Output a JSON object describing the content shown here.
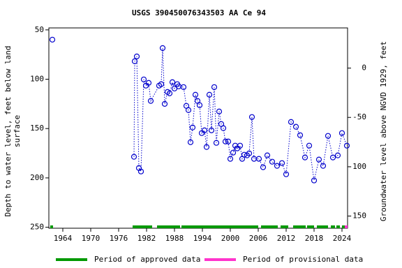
{
  "chart_data": {
    "type": "line",
    "title": "USGS 390450076343503 AA Ce  94",
    "ylabel": [
      "Depth to water level, feet below land",
      "surface"
    ],
    "y2label": "Groundwater level above NGVD 1929, feet",
    "xlim": [
      1961,
      2025.2
    ],
    "xticks": [
      1964,
      1970,
      1976,
      1982,
      1988,
      1994,
      2000,
      2006,
      2012,
      2018,
      2024
    ],
    "ylim": [
      251,
      48
    ],
    "yticks": [
      50,
      100,
      150,
      200,
      250
    ],
    "y2lim": [
      -162.3,
      40.7
    ],
    "y2ticks": [
      0,
      -50,
      -100,
      -150
    ],
    "series": [
      {
        "color": "#0000cc",
        "x": [
          1961.75,
          null,
          1979.3,
          1979.45,
          1979.9,
          1980.35,
          1980.8,
          1981.4,
          1981.85,
          1982.45,
          1982.9,
          1984.7,
          1985.15,
          1985.45,
          1985.9,
          1986.5,
          1986.95,
          1987.55,
          1988,
          1988.6,
          1988.9,
          1989.95,
          1990.55,
          1991,
          1991.45,
          1991.9,
          1992.5,
          1992.95,
          1993.4,
          1993.85,
          1994.45,
          1994.9,
          1995.5,
          1995.95,
          1996.55,
          1997,
          1997.6,
          1998.05,
          1998.5,
          1998.95,
          1999.55,
          2000,
          2000.6,
          2001.05,
          2001.5,
          2002.1,
          2002.55,
          2003,
          2003.6,
          2004.05,
          2004.65,
          2005.1,
          2006.15,
          2007.05,
          2007.95,
          2009,
          2010.05,
          2011.1,
          2012,
          2013.05,
          2014.1,
          2015,
          2016.05,
          2016.95,
          2018,
          2019.05,
          2019.95,
          2021,
          2022.05,
          2023.1,
          2024,
          2025.05
        ],
        "values": [
          59.9,
          null,
          178.6,
          81.8,
          76.9,
          190,
          193.5,
          100.2,
          106.5,
          103.7,
          122,
          106.5,
          105,
          68.4,
          125,
          112.9,
          114.3,
          103,
          109.4,
          105,
          107.2,
          108,
          127,
          131.3,
          163.8,
          148.9,
          115.7,
          122,
          126.3,
          154.6,
          151.8,
          168.7,
          115.7,
          151.8,
          108,
          164.5,
          132.7,
          145.4,
          149.6,
          163.1,
          163.1,
          180.7,
          174.4,
          167.3,
          170.1,
          167.3,
          180.7,
          176.5,
          177.2,
          175.1,
          138.3,
          180.7,
          180.7,
          189.2,
          177.2,
          183.6,
          187.8,
          185,
          196.3,
          143.3,
          148.2,
          156.7,
          179.3,
          167.3,
          202.6,
          181.4,
          187.8,
          157.4,
          179.3,
          177.2,
          154.6,
          167.3
        ]
      }
    ],
    "periods": [
      {
        "name": "Period of approved data",
        "color": "#009900",
        "ranges": [
          [
            1961.3,
            1961.9
          ],
          [
            1979.0,
            1983.2
          ],
          [
            1984.25,
            1989.2
          ],
          [
            1989.5,
            2006.0
          ],
          [
            2006.6,
            2010.2
          ],
          [
            2010.8,
            2012.45
          ],
          [
            2013.5,
            2016.2
          ],
          [
            2016.5,
            2018
          ],
          [
            2018.6,
            2021
          ],
          [
            2021.6,
            2022.5
          ],
          [
            2022.8,
            2023.55
          ],
          [
            2024,
            2024.6
          ]
        ]
      },
      {
        "name": "Period of provisional data",
        "color": "#ff33cc",
        "ranges": [
          [
            2024.6,
            2025.2
          ]
        ]
      }
    ]
  }
}
